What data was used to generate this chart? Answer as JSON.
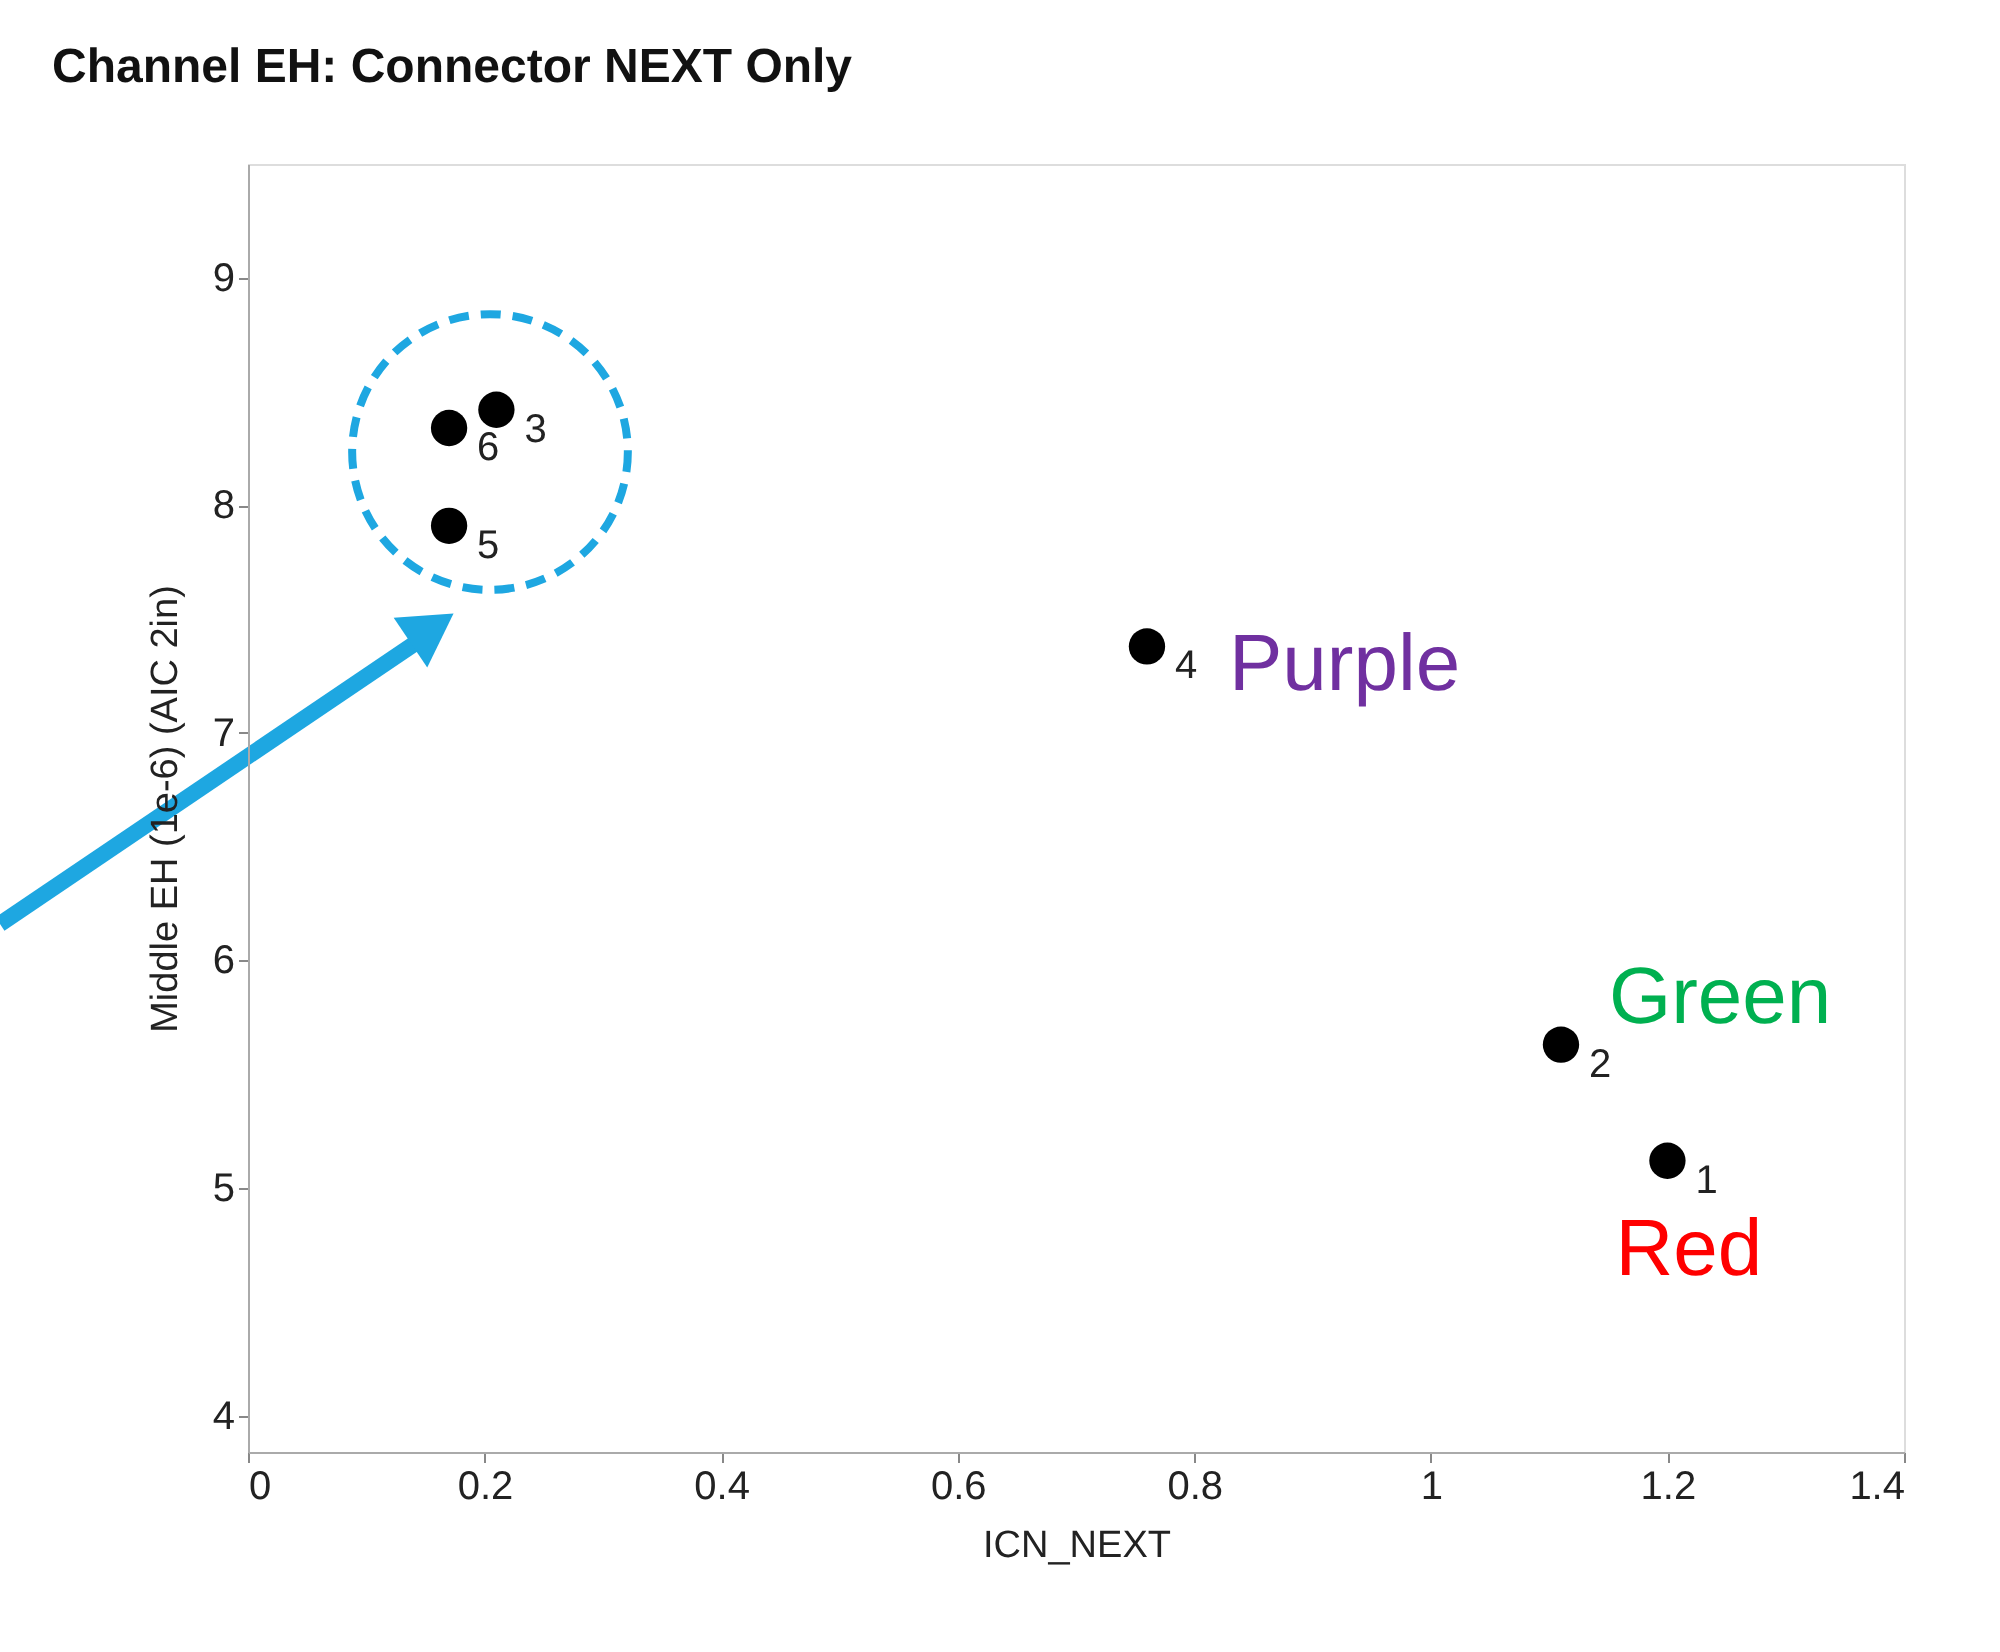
{
  "chart_data": {
    "type": "scatter",
    "title": "Channel EH: Connector NEXT Only",
    "xlabel": "ICN_NEXT",
    "ylabel": "Middle EH (1e-6) (AIC 2in)",
    "x": [
      1.2,
      1.11,
      0.21,
      0.76,
      0.17,
      0.17
    ],
    "series": [
      {
        "color": "#000000",
        "values": [
          5.12,
          5.63,
          8.42,
          7.38,
          7.91,
          8.34
        ]
      }
    ],
    "marker": "circle",
    "grid": false,
    "xlim": [
      0,
      1.4
    ],
    "xticks": [
      0,
      0.2,
      0.4,
      0.6,
      0.8,
      1,
      1.2,
      1.4
    ],
    "ylim": [
      3.84,
      9.5
    ],
    "yticks": [
      4,
      5,
      6,
      7,
      8,
      9
    ],
    "annotations": [
      {
        "text": "1",
        "x": 1.2,
        "y": 5.12
      },
      {
        "text": "2",
        "x": 1.11,
        "y": 5.63
      },
      {
        "text": "3",
        "x": 0.21,
        "y": 8.42
      },
      {
        "text": "4",
        "x": 0.76,
        "y": 7.38
      },
      {
        "text": "5",
        "x": 0.17,
        "y": 7.91
      },
      {
        "text": "6",
        "x": 0.17,
        "y": 8.34
      },
      {
        "text": "Purple",
        "x": 0.76,
        "y": 7.38
      },
      {
        "text": "Green",
        "x": 1.11,
        "y": 5.63
      },
      {
        "text": "Red",
        "x": 1.2,
        "y": 5.12
      }
    ]
  }
}
